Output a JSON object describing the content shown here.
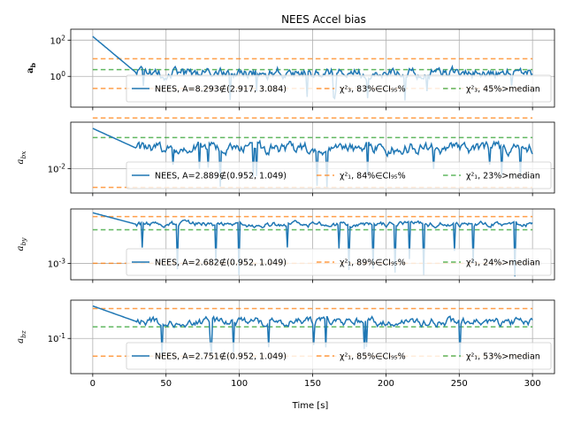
{
  "figure": {
    "title": "NEES Accel bias",
    "xlabel": "Time [s]"
  },
  "colors": {
    "nees": "#1f77b4",
    "nees_fill": "#a6c8e6",
    "chi2_ci": "#ff7f0e",
    "chi2_median": "#2ca02c"
  },
  "chart_data": [
    {
      "type": "line",
      "ylabel": "a_b",
      "yscale": "log",
      "ylim": [
        0.02,
        400
      ],
      "yticks": [
        {
          "value": 1,
          "label": "10^0"
        },
        {
          "value": 100,
          "label": "10^2"
        }
      ],
      "xlim": [
        -15,
        315
      ],
      "xticks": [
        0,
        50,
        100,
        150,
        200,
        250,
        300
      ],
      "grid": true,
      "legend_loc": "lower-right",
      "ci": [
        0.216,
        9.35
      ],
      "median": 2.37,
      "series_start": 160,
      "series_base": 1.5,
      "series_peak": 12,
      "series_dip": 0.04,
      "legend": [
        {
          "kind": "nees",
          "text": "NEES, A=8.293∉(2.917, 3.084)"
        },
        {
          "kind": "ci",
          "text": "χ²₃, 83%∈CI₉₅%"
        },
        {
          "kind": "median",
          "text": "χ²₃, 45%>median"
        }
      ]
    },
    {
      "type": "line",
      "ylabel": "a_bx",
      "yscale": "log",
      "ylim": [
        0.0005,
        3
      ],
      "yticks": [
        {
          "value": 0.01,
          "label": "10^-2"
        }
      ],
      "xlim": [
        -15,
        315
      ],
      "xticks": [
        0,
        50,
        100,
        150,
        200,
        250,
        300
      ],
      "grid": true,
      "legend_loc": "lower-right",
      "ci": [
        0.001,
        5.02
      ],
      "median": 0.455,
      "series_start": 1.4,
      "series_base": 0.12,
      "series_peak": 1.0,
      "series_dip": 0.001,
      "legend": [
        {
          "kind": "nees",
          "text": "NEES, A=2.889∉(0.952, 1.049)"
        },
        {
          "kind": "ci",
          "text": "χ²₁, 84%∈CI₉₅%"
        },
        {
          "kind": "median",
          "text": "χ²₁, 23%>median"
        }
      ]
    },
    {
      "type": "line",
      "ylabel": "a_by",
      "yscale": "log",
      "ylim": [
        5e-05,
        20
      ],
      "yticks": [
        {
          "value": 0.001,
          "label": "10^-3"
        }
      ],
      "xlim": [
        -15,
        315
      ],
      "xticks": [
        0,
        50,
        100,
        150,
        200,
        250,
        300
      ],
      "grid": true,
      "legend_loc": "lower-right",
      "ci": [
        0.001,
        5.02
      ],
      "median": 0.455,
      "series_start": 10,
      "series_base": 1.2,
      "series_peak": 5,
      "series_dip": 8e-05,
      "legend": [
        {
          "kind": "nees",
          "text": "NEES, A=2.682∉(0.952, 1.049)"
        },
        {
          "kind": "ci",
          "text": "χ²₁, 89%∈CI₉₅%"
        },
        {
          "kind": "median",
          "text": "χ²₁, 24%>median"
        }
      ]
    },
    {
      "type": "line",
      "ylabel": "a_bz",
      "yscale": "log",
      "ylim": [
        0.001,
        15
      ],
      "yticks": [
        {
          "value": 0.1,
          "label": "10^-1"
        }
      ],
      "xlim": [
        -15,
        315
      ],
      "xticks": [
        0,
        50,
        100,
        150,
        200,
        250,
        300
      ],
      "xticklabels": true,
      "grid": true,
      "legend_loc": "lower-right",
      "ci": [
        0.0098,
        5.02
      ],
      "median": 0.455,
      "series_start": 7,
      "series_base": 0.9,
      "series_peak": 4.5,
      "series_dip": 0.0015,
      "legend": [
        {
          "kind": "nees",
          "text": "NEES, A=2.751∉(0.952, 1.049)"
        },
        {
          "kind": "ci",
          "text": "χ²₁, 85%∈CI₉₅%"
        },
        {
          "kind": "median",
          "text": "χ²₁, 53%>median"
        }
      ]
    }
  ]
}
